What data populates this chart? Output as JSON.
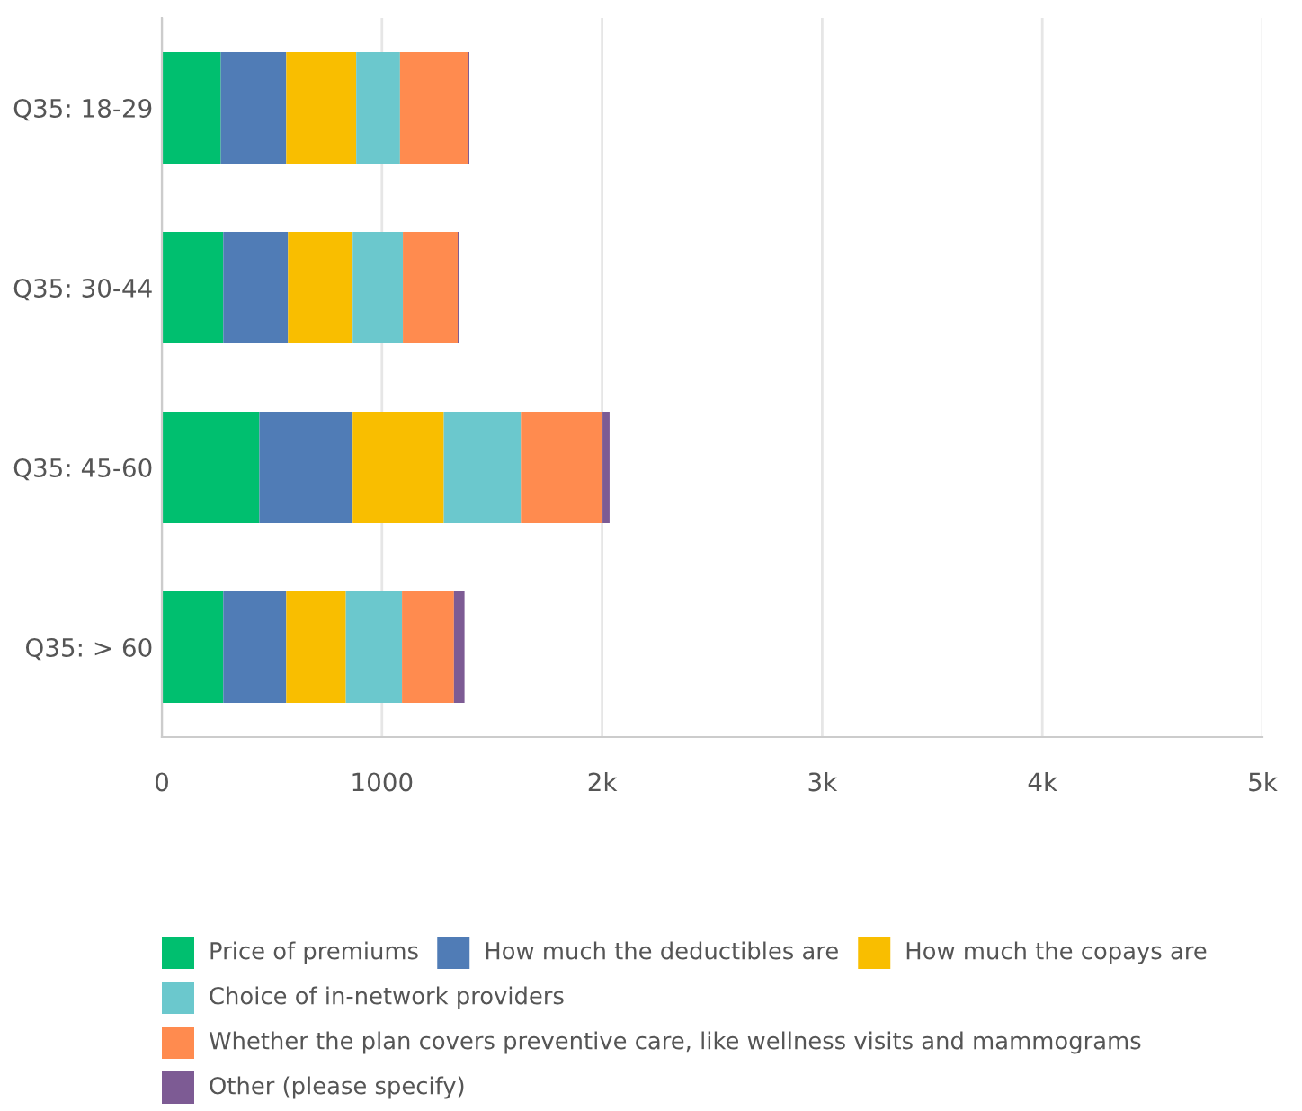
{
  "chart_data": {
    "type": "bar",
    "orientation": "horizontal",
    "stacked": true,
    "categories": [
      "Q35: 18-29",
      "Q35: 30-44",
      "Q35: 45-60",
      "Q35: > 60"
    ],
    "series": [
      {
        "name": "Price of premiums",
        "color": "#00bf6f",
        "values": [
          268,
          279,
          443,
          279
        ]
      },
      {
        "name": "How much the deductibles are",
        "color": "#507cb6",
        "values": [
          297,
          294,
          424,
          286
        ]
      },
      {
        "name": "How much the copays are",
        "color": "#f9be00",
        "values": [
          318,
          294,
          414,
          271
        ]
      },
      {
        "name": "Choice of in-network providers",
        "color": "#6bc8cd",
        "values": [
          199,
          228,
          350,
          255
        ]
      },
      {
        "name": "Whether the plan covers preventive care, like wellness visits and mammograms",
        "color": "#ff8b4f",
        "values": [
          310,
          249,
          371,
          236
        ]
      },
      {
        "name": "Other (please specify)",
        "color": "#7d5b94",
        "values": [
          5,
          5,
          32,
          48
        ]
      }
    ],
    "xlim": [
      0,
      5000
    ],
    "xticks": [
      0,
      1000,
      {
        "value": 2000,
        "label": "2k"
      },
      {
        "value": 3000,
        "label": "3k"
      },
      {
        "value": 4000,
        "label": "4k"
      },
      {
        "value": 5000,
        "label": "5k"
      }
    ],
    "grid": "x",
    "legend": "bottom"
  }
}
